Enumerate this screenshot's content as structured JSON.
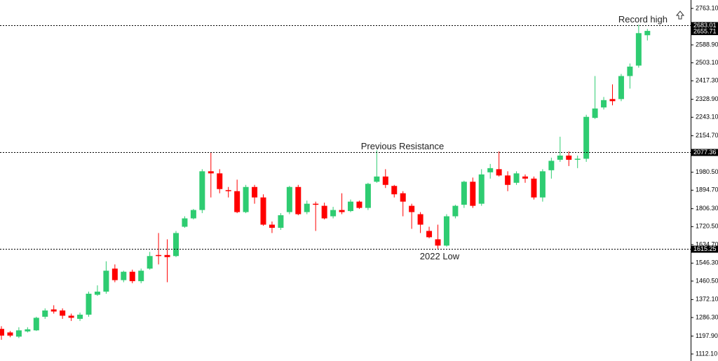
{
  "chart_data": {
    "type": "candlestick",
    "open": [
      1232,
      1215,
      1195,
      1220,
      1225,
      1290,
      1325,
      1320,
      1295,
      1280,
      1300,
      1395,
      1410,
      1520,
      1465,
      1505,
      1460,
      1520,
      1585,
      1585,
      1580,
      1720,
      1760,
      1800,
      1985,
      1975,
      1895,
      1890,
      1790,
      1910,
      1860,
      1730,
      1715,
      1790,
      1910,
      1790,
      1830,
      1820,
      1770,
      1800,
      1795,
      1840,
      1810,
      1935,
      1960,
      1915,
      1880,
      1820,
      1780,
      1700,
      1660,
      1630,
      1770,
      1825,
      1935,
      1830,
      1980,
      1995,
      1965,
      1930,
      1960,
      1950,
      1860,
      1990,
      2040,
      2060,
      2040,
      2045,
      2240,
      2290,
      2330,
      2330,
      2440,
      2490,
      2635
    ],
    "high": [
      1245,
      1222,
      1240,
      1240,
      1290,
      1330,
      1345,
      1330,
      1305,
      1310,
      1410,
      1440,
      1555,
      1540,
      1510,
      1515,
      1520,
      1600,
      1690,
      1660,
      1700,
      1770,
      1805,
      1995,
      2075,
      1995,
      1910,
      1945,
      1920,
      1920,
      1875,
      1745,
      1785,
      1915,
      1920,
      1845,
      1840,
      1835,
      1815,
      1880,
      1850,
      1845,
      1930,
      2085,
      1995,
      1920,
      1890,
      1830,
      1790,
      1720,
      1730,
      1780,
      1825,
      1940,
      1955,
      1995,
      2020,
      2080,
      1985,
      1985,
      1970,
      1960,
      1995,
      2050,
      2150,
      2080,
      2060,
      2255,
      2440,
      2340,
      2400,
      2450,
      2500,
      2685,
      2665
    ],
    "low": [
      1180,
      1192,
      1188,
      1215,
      1222,
      1280,
      1305,
      1280,
      1270,
      1270,
      1290,
      1390,
      1400,
      1455,
      1455,
      1450,
      1450,
      1515,
      1540,
      1455,
      1575,
      1715,
      1755,
      1785,
      1860,
      1880,
      1860,
      1785,
      1785,
      1830,
      1725,
      1690,
      1705,
      1780,
      1775,
      1780,
      1700,
      1755,
      1760,
      1780,
      1790,
      1805,
      1800,
      1930,
      1905,
      1860,
      1770,
      1710,
      1690,
      1665,
      1615,
      1625,
      1760,
      1810,
      1810,
      1820,
      1950,
      1960,
      1890,
      1920,
      1930,
      1850,
      1840,
      1950,
      2030,
      2010,
      2000,
      2030,
      2235,
      2280,
      2300,
      2320,
      2380,
      2480,
      2610
    ],
    "close": [
      1200,
      1200,
      1225,
      1230,
      1285,
      1320,
      1315,
      1295,
      1285,
      1300,
      1400,
      1410,
      1510,
      1465,
      1505,
      1460,
      1510,
      1580,
      1580,
      1575,
      1690,
      1760,
      1800,
      1985,
      1975,
      1900,
      1890,
      1790,
      1910,
      1860,
      1730,
      1715,
      1775,
      1910,
      1780,
      1830,
      1825,
      1760,
      1800,
      1790,
      1840,
      1810,
      1925,
      1960,
      1920,
      1875,
      1840,
      1790,
      1730,
      1670,
      1630,
      1770,
      1820,
      1935,
      1820,
      1970,
      2000,
      1965,
      1920,
      1975,
      1950,
      1860,
      1985,
      2035,
      2060,
      2040,
      2045,
      2245,
      2285,
      2325,
      2320,
      2440,
      2485,
      2645,
      2655.71
    ],
    "up_color": "#2ecc71",
    "down_color": "#ff0000",
    "ylim": [
      1112.1,
      2763.1
    ],
    "yticks": [
      {
        "value": 1112.1,
        "label": "1112.10"
      },
      {
        "value": 1197.9,
        "label": "1197.90"
      },
      {
        "value": 1286.3,
        "label": "1286.30"
      },
      {
        "value": 1372.1,
        "label": "1372.10"
      },
      {
        "value": 1460.5,
        "label": "1460.50"
      },
      {
        "value": 1546.3,
        "label": "1546.30"
      },
      {
        "value": 1634.7,
        "label": "1634.70"
      },
      {
        "value": 1720.5,
        "label": "1720.50"
      },
      {
        "value": 1806.3,
        "label": "1806.30"
      },
      {
        "value": 1894.7,
        "label": "1894.70"
      },
      {
        "value": 1980.5,
        "label": "1980.50"
      },
      {
        "value": 2154.7,
        "label": "2154.70"
      },
      {
        "value": 2243.1,
        "label": "2243.10"
      },
      {
        "value": 2328.9,
        "label": "2328.90"
      },
      {
        "value": 2417.3,
        "label": "2417.30"
      },
      {
        "value": 2503.1,
        "label": "2503.10"
      },
      {
        "value": 2588.9,
        "label": "2588.90"
      },
      {
        "value": 2763.1,
        "label": "2763.10"
      }
    ],
    "levels": [
      2683.01,
      2077.36,
      1615.25
    ],
    "annotations": [
      "Record high",
      "Previous Resistance",
      "2022 Low"
    ],
    "last_price": 2655.71
  }
}
